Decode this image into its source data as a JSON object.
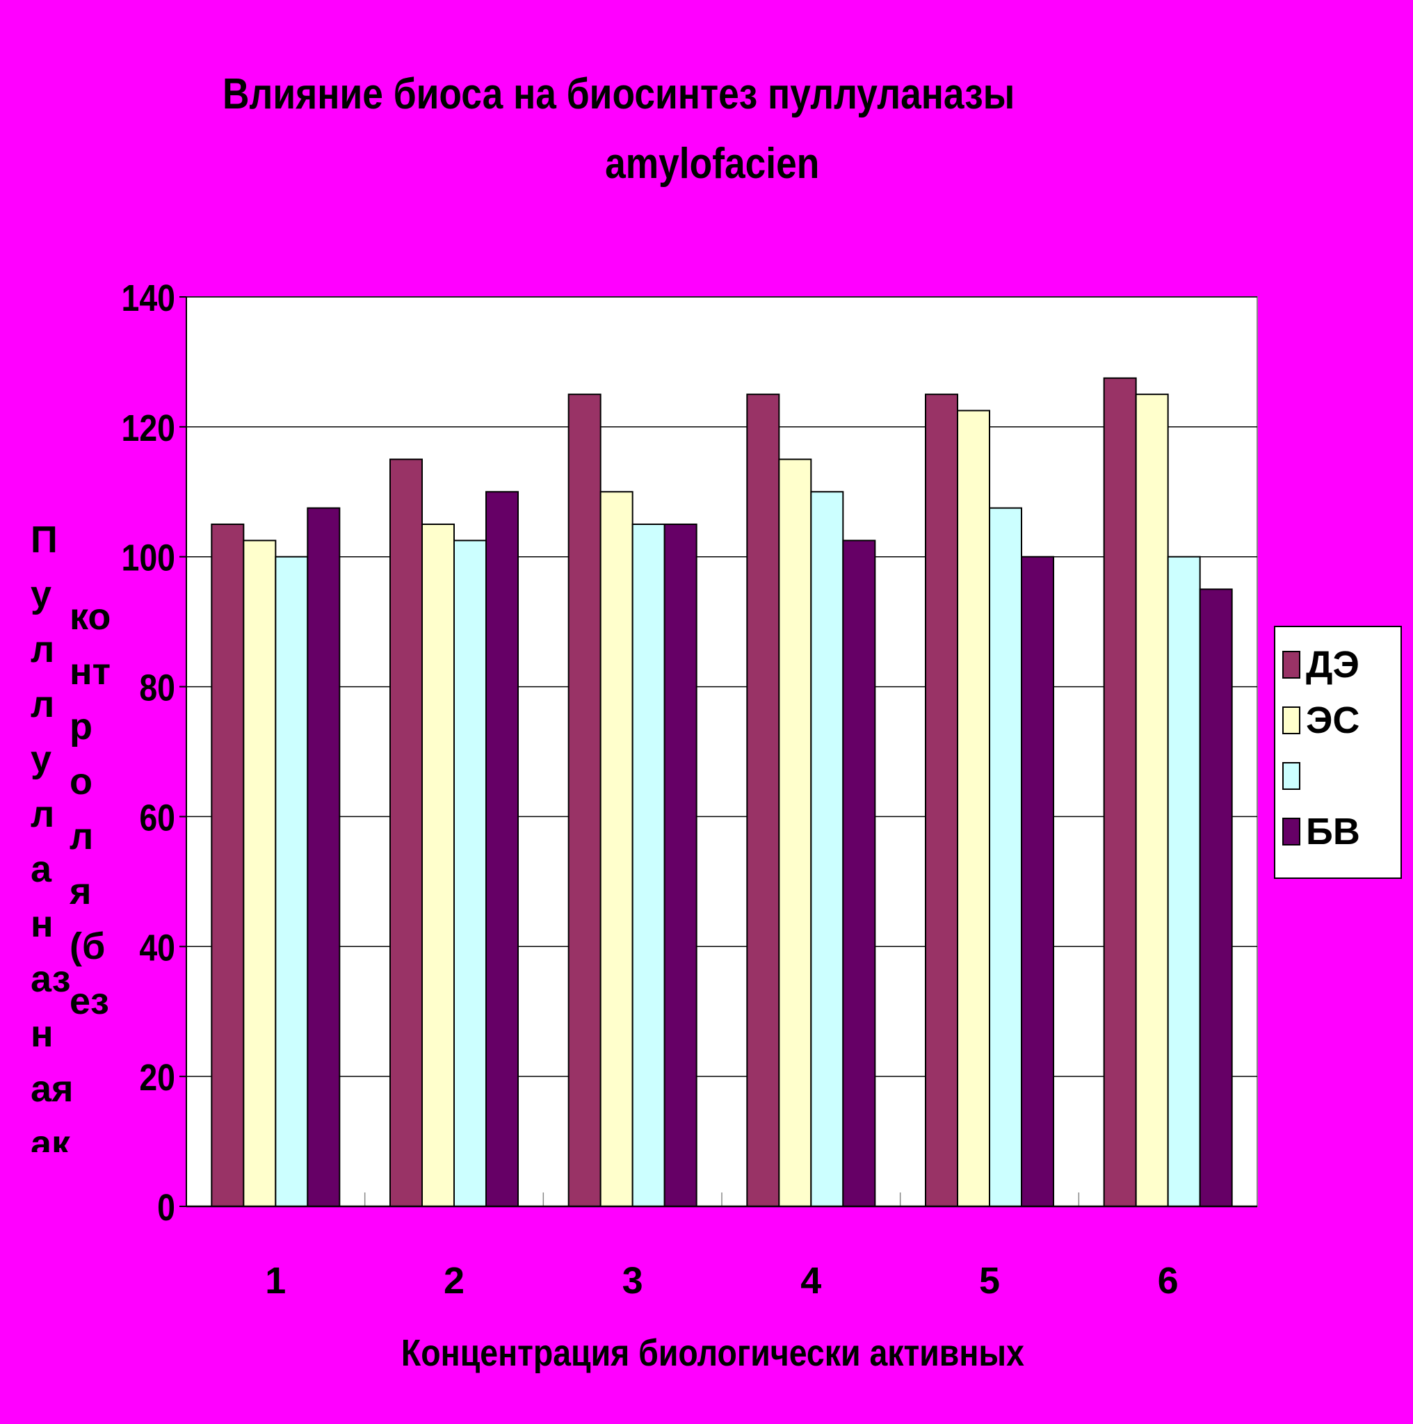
{
  "colors": {
    "background": "#ff00ff",
    "plot_background": "#ffffff",
    "gridline": "#000000"
  },
  "chart_data": {
    "type": "bar",
    "title": "Влияние биоса на биосинтез пуллуланазы",
    "title_line_2": "amylofacien",
    "title_fragment": "---",
    "xlabel": "Концентрация биологически активных",
    "ylabel": "Пуллуланазная активность",
    "ylabel_2": "контроля(без биос",
    "categories": [
      "1",
      "2",
      "3",
      "4",
      "5",
      "6"
    ],
    "ylim": [
      0,
      140
    ],
    "yticks": [
      0,
      20,
      40,
      60,
      80,
      100,
      120,
      140
    ],
    "grid": true,
    "legend_position": "right",
    "series": [
      {
        "name": "ДЭ",
        "color": "#993366",
        "values": [
          105,
          115,
          125,
          125,
          125,
          127.5
        ]
      },
      {
        "name": "ЭС",
        "color": "#ffffcc",
        "values": [
          102.5,
          105,
          110,
          115,
          122.5,
          125
        ]
      },
      {
        "name": "",
        "color": "#ccffff",
        "values": [
          100,
          102.5,
          105,
          110,
          107.5,
          100
        ]
      },
      {
        "name": "БВ",
        "color": "#660066",
        "values": [
          107.5,
          110,
          105,
          102.5,
          100,
          95
        ]
      }
    ]
  }
}
